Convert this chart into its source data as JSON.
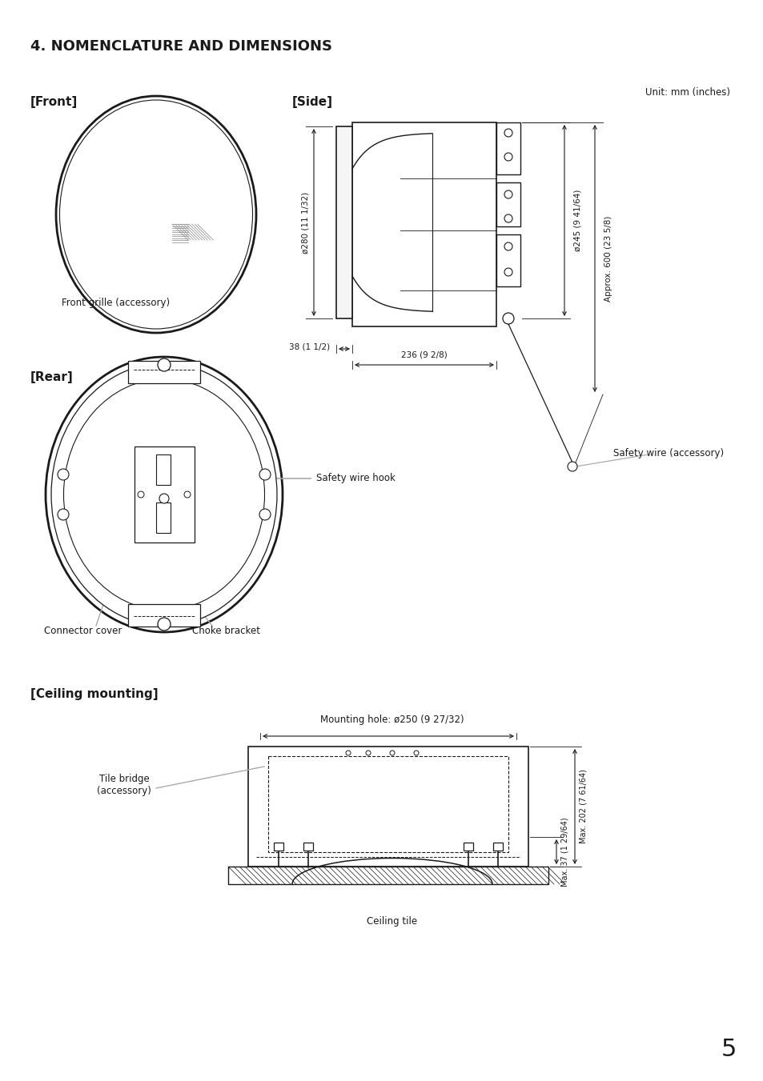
{
  "title": "4. NOMENCLATURE AND DIMENSIONS",
  "unit_label": "Unit: mm (inches)",
  "front_label": "[Front]",
  "side_label": "[Side]",
  "rear_label": "[Rear]",
  "ceiling_label": "[Ceiling mounting]",
  "front_grille_label": "Front grille (accessory)",
  "safety_wire_hook_label": "Safety wire hook",
  "connector_cover_label": "Connector cover",
  "choke_bracket_label": "Choke bracket",
  "safety_wire_label": "Safety wire (accessory)",
  "mounting_hole_label": "Mounting hole: ø250 (9 27/32)",
  "tile_bridge_label": "Tile bridge\n(accessory)",
  "ceiling_tile_label": "Ceiling tile",
  "dim_phi280": "ø280 (11 1/32)",
  "dim_phi245": "ø245 (9 41/64)",
  "dim_38": "38 (1 1/2)",
  "dim_236": "236 (9 2/8)",
  "dim_600": "Approx. 600 (23 5/8)",
  "dim_max37": "Max. 37 (1 29/64)",
  "dim_max202": "Max. 202 (7 61/64)",
  "page_number": "5",
  "bg_color": "#ffffff",
  "line_color": "#1a1a1a",
  "gray_color": "#aaaaaa",
  "text_color": "#1a1a1a"
}
